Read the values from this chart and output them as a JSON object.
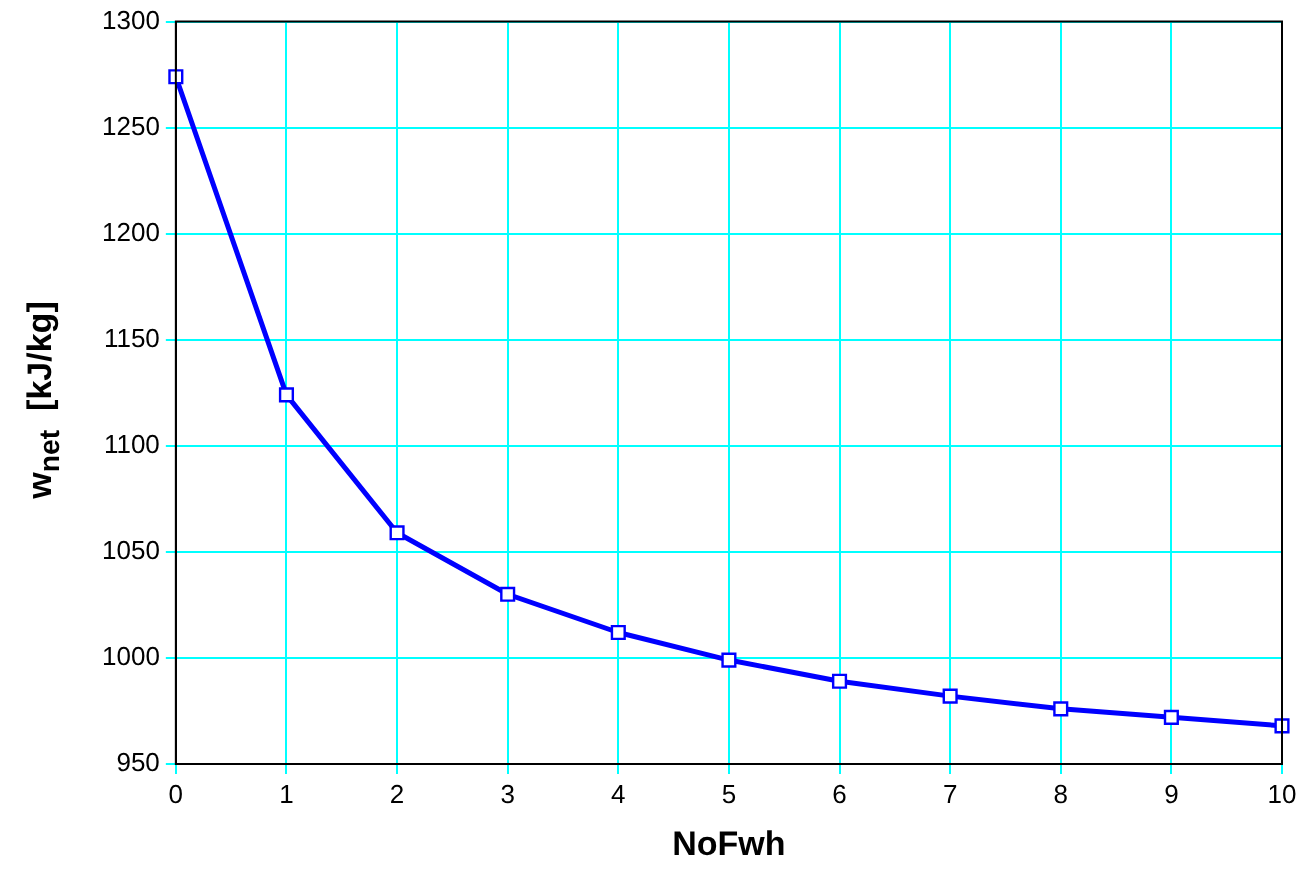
{
  "chart_data": {
    "type": "line",
    "xlabel": "NoFwh",
    "ylabel": "w$_{net}$  [kJ/kg]",
    "x": [
      0,
      1,
      2,
      3,
      4,
      5,
      6,
      7,
      8,
      9,
      10
    ],
    "series": [
      {
        "color": "#0000ff",
        "values": [
          1274,
          1124,
          1059,
          1030,
          1012,
          999,
          989,
          982,
          976,
          972,
          968
        ]
      }
    ],
    "xlim": [
      0,
      10
    ],
    "xticks": [
      0,
      1,
      2,
      3,
      4,
      5,
      6,
      7,
      8,
      9,
      10
    ],
    "ylim": [
      950,
      1300
    ],
    "yticks": [
      950,
      1000,
      1050,
      1100,
      1150,
      1200,
      1250,
      1300
    ],
    "grid": true,
    "marker": "square",
    "line_style": "solid",
    "legend": false
  }
}
